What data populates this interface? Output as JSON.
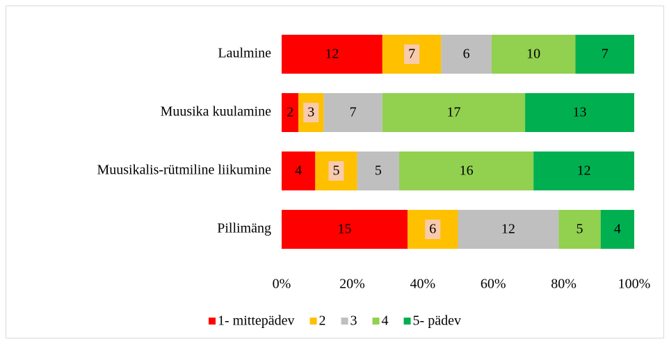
{
  "chart_data": {
    "type": "bar",
    "orientation": "horizontal",
    "stacked": "percent",
    "categories": [
      "Laulmine",
      "Muusika kuulamine",
      "Muusikalis-rütmiline liikumine",
      "Pillimäng"
    ],
    "series": [
      {
        "name": "1- mittepädev",
        "color": "#ff0000",
        "values": [
          12,
          2,
          4,
          15
        ]
      },
      {
        "name": "2",
        "color": "#ffc000",
        "label_background": "#f8cbad",
        "values": [
          7,
          3,
          5,
          6
        ]
      },
      {
        "name": "3",
        "color": "#bfbfbf",
        "values": [
          6,
          7,
          5,
          12
        ]
      },
      {
        "name": "4",
        "color": "#92d050",
        "values": [
          10,
          17,
          16,
          5
        ]
      },
      {
        "name": "5- pädev",
        "color": "#00b050",
        "values": [
          7,
          13,
          12,
          4
        ]
      }
    ],
    "xlim": [
      0,
      100
    ],
    "xticks": [
      {
        "value": 0,
        "label": "0%"
      },
      {
        "value": 20,
        "label": "20%"
      },
      {
        "value": 40,
        "label": "40%"
      },
      {
        "value": 60,
        "label": "60%"
      },
      {
        "value": 80,
        "label": "80%"
      },
      {
        "value": 100,
        "label": "100%"
      }
    ],
    "grid": false,
    "legend": "bottom"
  }
}
